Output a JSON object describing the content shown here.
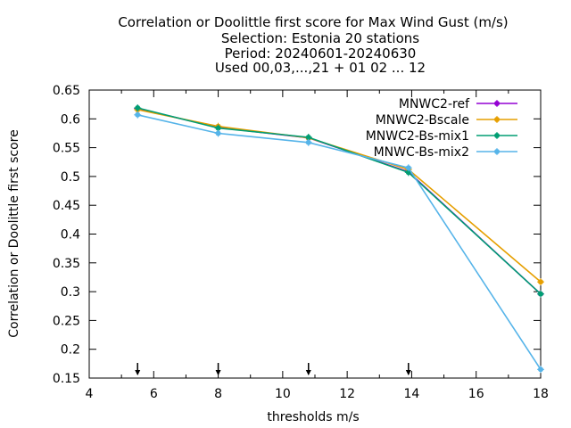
{
  "chart_data": {
    "type": "line",
    "title_lines": [
      "Correlation or Doolittle first score  for Max Wind Gust (m/s)",
      "Selection: Estonia     20 stations",
      "Period: 20240601-20240630",
      "Used 00,03,...,21 + 01 02 ... 12"
    ],
    "xlabel": "thresholds m/s",
    "ylabel": "Correlation or Doolittle first score",
    "xlim": [
      4,
      18
    ],
    "ylim": [
      0.15,
      0.65
    ],
    "xticks": [
      4,
      6,
      8,
      10,
      12,
      14,
      16,
      18
    ],
    "xtick_labels": [
      "4",
      "6",
      "8",
      "10",
      "12",
      "14",
      "16",
      "18"
    ],
    "yticks": [
      0.15,
      0.2,
      0.25,
      0.3,
      0.35,
      0.4,
      0.45,
      0.5,
      0.55,
      0.6,
      0.65
    ],
    "ytick_labels": [
      "0.15",
      "0.2",
      "0.25",
      "0.3",
      "0.35",
      "0.4",
      "0.45",
      "0.5",
      "0.55",
      "0.6",
      "0.65"
    ],
    "grid": false,
    "legend_position": "top-right",
    "threshold_arrows_x": [
      5.5,
      8,
      10.8,
      13.9
    ],
    "series": [
      {
        "name": "MNWC2-ref",
        "color": "#9400d3",
        "x": [
          5.5,
          8,
          10.8,
          13.9,
          18
        ],
        "y": [
          0.618,
          0.585,
          0.567,
          0.508,
          0.296
        ]
      },
      {
        "name": "MNWC2-Bscale",
        "color": "#e69f00",
        "x": [
          5.5,
          8,
          10.8,
          13.9,
          18
        ],
        "y": [
          0.616,
          0.587,
          0.567,
          0.512,
          0.317
        ]
      },
      {
        "name": "MNWC2-Bs-mix1",
        "color": "#009e73",
        "x": [
          5.5,
          8,
          10.8,
          13.9,
          18
        ],
        "y": [
          0.619,
          0.584,
          0.568,
          0.507,
          0.296
        ]
      },
      {
        "name": "MNWC-Bs-mix2",
        "color": "#56b4e9",
        "x": [
          5.5,
          8,
          10.8,
          13.9,
          18
        ],
        "y": [
          0.607,
          0.575,
          0.559,
          0.515,
          0.165
        ]
      }
    ]
  }
}
